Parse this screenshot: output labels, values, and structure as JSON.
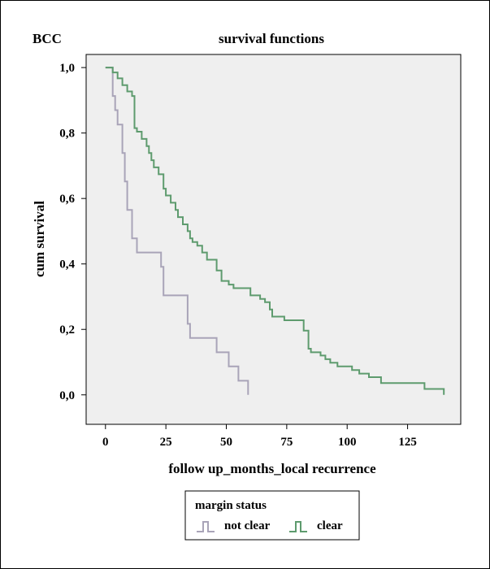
{
  "chart_data": {
    "type": "line",
    "corner_label": "BCC",
    "title": "survival functions",
    "xlabel": "follow up_months_local recurrence",
    "ylabel": "cum survival",
    "xlim": [
      -8,
      147
    ],
    "ylim": [
      -0.09,
      1.04
    ],
    "x_ticks": [
      0,
      25,
      50,
      75,
      100,
      125
    ],
    "x_tick_labels": [
      "0",
      "25",
      "50",
      "75",
      "100",
      "125"
    ],
    "y_ticks": [
      0.0,
      0.2,
      0.4,
      0.6,
      0.8,
      1.0
    ],
    "y_tick_labels": [
      "0,0",
      "0,2",
      "0,4",
      "0,6",
      "0,8",
      "1,0"
    ],
    "grid": false,
    "step": true,
    "plot_background": "#efefef",
    "legend": {
      "title": "margin status",
      "placement": "bottom-center",
      "entries": [
        "not clear",
        "clear"
      ]
    },
    "series": [
      {
        "name": "not clear",
        "color": "#a9a4b8",
        "x": [
          0,
          3,
          4,
          5,
          7,
          8,
          9,
          11,
          13,
          16,
          23,
          24,
          34,
          35,
          46,
          51,
          55,
          59
        ],
        "y": [
          1.0,
          0.913,
          0.87,
          0.826,
          0.739,
          0.652,
          0.565,
          0.478,
          0.435,
          0.435,
          0.391,
          0.304,
          0.217,
          0.174,
          0.13,
          0.087,
          0.043,
          0.0
        ]
      },
      {
        "name": "clear",
        "color": "#5e9b6e",
        "x": [
          0,
          3,
          5,
          7,
          9,
          11,
          12,
          13,
          15,
          17,
          18,
          19,
          20,
          22,
          24,
          25,
          27,
          29,
          30,
          32,
          34,
          35,
          36,
          38,
          40,
          41,
          42,
          43,
          46,
          48,
          51,
          53,
          55,
          60,
          64,
          66,
          68,
          69,
          71,
          74,
          76,
          82,
          84,
          85,
          87,
          89,
          91,
          93,
          96,
          102,
          105,
          109,
          114,
          132,
          140
        ],
        "y": [
          1.0,
          0.985,
          0.967,
          0.946,
          0.927,
          0.913,
          0.815,
          0.804,
          0.782,
          0.76,
          0.739,
          0.717,
          0.695,
          0.674,
          0.63,
          0.609,
          0.587,
          0.565,
          0.543,
          0.521,
          0.5,
          0.478,
          0.467,
          0.456,
          0.435,
          0.435,
          0.413,
          0.413,
          0.38,
          0.348,
          0.337,
          0.326,
          0.326,
          0.304,
          0.293,
          0.283,
          0.261,
          0.239,
          0.239,
          0.228,
          0.228,
          0.196,
          0.141,
          0.13,
          0.13,
          0.12,
          0.109,
          0.098,
          0.087,
          0.076,
          0.065,
          0.054,
          0.036,
          0.018,
          0.0
        ]
      }
    ]
  }
}
